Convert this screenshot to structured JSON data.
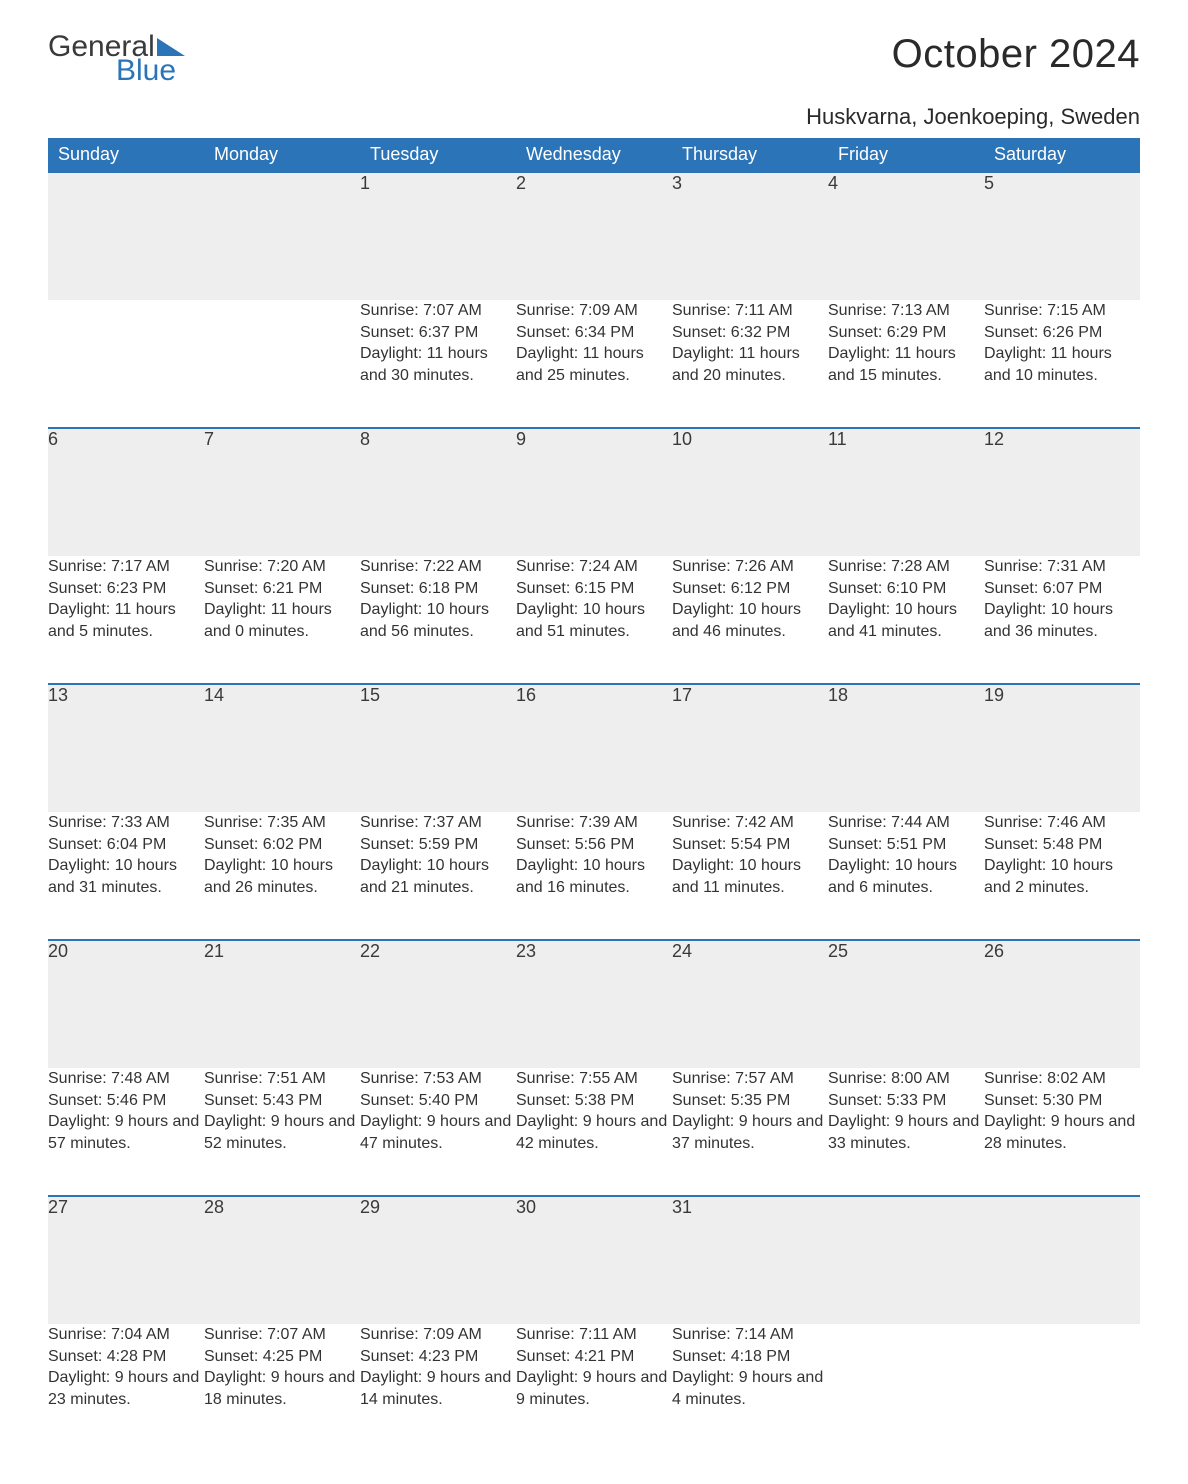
{
  "logo": {
    "line1": "General",
    "line2": "Blue",
    "accent_color": "#2b74b8",
    "text_color": "#3a3a3a"
  },
  "title": "October 2024",
  "location": "Huskvarna, Joenkoeping, Sweden",
  "calendar": {
    "header_bg": "#2b74b8",
    "header_fg": "#ffffff",
    "daynum_bg": "#eeeeee",
    "rule_color": "#2b74b8",
    "body_bg": "#ffffff",
    "text_color": "#333333",
    "font_size_header": 18,
    "font_size_daynum": 18,
    "font_size_detail": 16,
    "day_labels": [
      "Sunday",
      "Monday",
      "Tuesday",
      "Wednesday",
      "Thursday",
      "Friday",
      "Saturday"
    ],
    "weeks": [
      [
        null,
        null,
        {
          "n": "1",
          "sunrise": "7:07 AM",
          "sunset": "6:37 PM",
          "day_h": "11",
          "day_m": "30"
        },
        {
          "n": "2",
          "sunrise": "7:09 AM",
          "sunset": "6:34 PM",
          "day_h": "11",
          "day_m": "25"
        },
        {
          "n": "3",
          "sunrise": "7:11 AM",
          "sunset": "6:32 PM",
          "day_h": "11",
          "day_m": "20"
        },
        {
          "n": "4",
          "sunrise": "7:13 AM",
          "sunset": "6:29 PM",
          "day_h": "11",
          "day_m": "15"
        },
        {
          "n": "5",
          "sunrise": "7:15 AM",
          "sunset": "6:26 PM",
          "day_h": "11",
          "day_m": "10"
        }
      ],
      [
        {
          "n": "6",
          "sunrise": "7:17 AM",
          "sunset": "6:23 PM",
          "day_h": "11",
          "day_m": "5"
        },
        {
          "n": "7",
          "sunrise": "7:20 AM",
          "sunset": "6:21 PM",
          "day_h": "11",
          "day_m": "0"
        },
        {
          "n": "8",
          "sunrise": "7:22 AM",
          "sunset": "6:18 PM",
          "day_h": "10",
          "day_m": "56"
        },
        {
          "n": "9",
          "sunrise": "7:24 AM",
          "sunset": "6:15 PM",
          "day_h": "10",
          "day_m": "51"
        },
        {
          "n": "10",
          "sunrise": "7:26 AM",
          "sunset": "6:12 PM",
          "day_h": "10",
          "day_m": "46"
        },
        {
          "n": "11",
          "sunrise": "7:28 AM",
          "sunset": "6:10 PM",
          "day_h": "10",
          "day_m": "41"
        },
        {
          "n": "12",
          "sunrise": "7:31 AM",
          "sunset": "6:07 PM",
          "day_h": "10",
          "day_m": "36"
        }
      ],
      [
        {
          "n": "13",
          "sunrise": "7:33 AM",
          "sunset": "6:04 PM",
          "day_h": "10",
          "day_m": "31"
        },
        {
          "n": "14",
          "sunrise": "7:35 AM",
          "sunset": "6:02 PM",
          "day_h": "10",
          "day_m": "26"
        },
        {
          "n": "15",
          "sunrise": "7:37 AM",
          "sunset": "5:59 PM",
          "day_h": "10",
          "day_m": "21"
        },
        {
          "n": "16",
          "sunrise": "7:39 AM",
          "sunset": "5:56 PM",
          "day_h": "10",
          "day_m": "16"
        },
        {
          "n": "17",
          "sunrise": "7:42 AM",
          "sunset": "5:54 PM",
          "day_h": "10",
          "day_m": "11"
        },
        {
          "n": "18",
          "sunrise": "7:44 AM",
          "sunset": "5:51 PM",
          "day_h": "10",
          "day_m": "6"
        },
        {
          "n": "19",
          "sunrise": "7:46 AM",
          "sunset": "5:48 PM",
          "day_h": "10",
          "day_m": "2"
        }
      ],
      [
        {
          "n": "20",
          "sunrise": "7:48 AM",
          "sunset": "5:46 PM",
          "day_h": "9",
          "day_m": "57"
        },
        {
          "n": "21",
          "sunrise": "7:51 AM",
          "sunset": "5:43 PM",
          "day_h": "9",
          "day_m": "52"
        },
        {
          "n": "22",
          "sunrise": "7:53 AM",
          "sunset": "5:40 PM",
          "day_h": "9",
          "day_m": "47"
        },
        {
          "n": "23",
          "sunrise": "7:55 AM",
          "sunset": "5:38 PM",
          "day_h": "9",
          "day_m": "42"
        },
        {
          "n": "24",
          "sunrise": "7:57 AM",
          "sunset": "5:35 PM",
          "day_h": "9",
          "day_m": "37"
        },
        {
          "n": "25",
          "sunrise": "8:00 AM",
          "sunset": "5:33 PM",
          "day_h": "9",
          "day_m": "33"
        },
        {
          "n": "26",
          "sunrise": "8:02 AM",
          "sunset": "5:30 PM",
          "day_h": "9",
          "day_m": "28"
        }
      ],
      [
        {
          "n": "27",
          "sunrise": "7:04 AM",
          "sunset": "4:28 PM",
          "day_h": "9",
          "day_m": "23"
        },
        {
          "n": "28",
          "sunrise": "7:07 AM",
          "sunset": "4:25 PM",
          "day_h": "9",
          "day_m": "18"
        },
        {
          "n": "29",
          "sunrise": "7:09 AM",
          "sunset": "4:23 PM",
          "day_h": "9",
          "day_m": "14"
        },
        {
          "n": "30",
          "sunrise": "7:11 AM",
          "sunset": "4:21 PM",
          "day_h": "9",
          "day_m": "9"
        },
        {
          "n": "31",
          "sunrise": "7:14 AM",
          "sunset": "4:18 PM",
          "day_h": "9",
          "day_m": "4"
        },
        null,
        null
      ]
    ],
    "labels": {
      "sunrise": "Sunrise:",
      "sunset": "Sunset:",
      "daylight": "Daylight:",
      "hours": "hours",
      "and": "and",
      "minutes": "minutes."
    }
  }
}
